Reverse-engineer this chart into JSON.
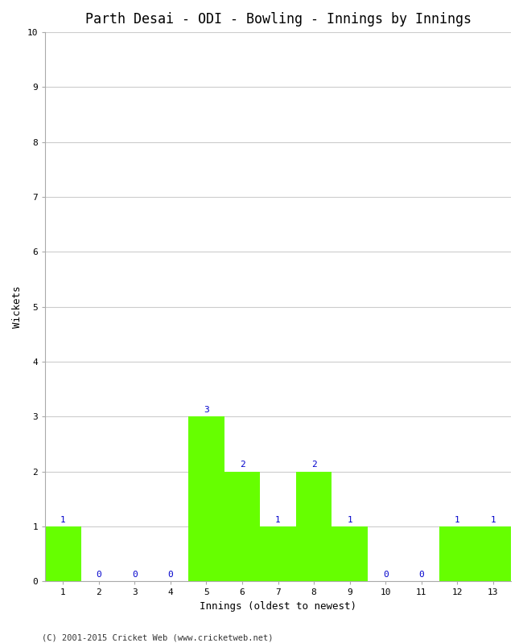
{
  "title": "Parth Desai - ODI - Bowling - Innings by Innings",
  "xlabel": "Innings (oldest to newest)",
  "ylabel": "Wickets",
  "categories": [
    "1",
    "2",
    "3",
    "4",
    "5",
    "6",
    "7",
    "8",
    "9",
    "10",
    "11",
    "12",
    "13"
  ],
  "values": [
    1,
    0,
    0,
    0,
    3,
    2,
    1,
    2,
    1,
    0,
    0,
    1,
    1
  ],
  "bar_color": "#66ff00",
  "bar_edge_color": "#66ff00",
  "label_color": "#0000cc",
  "background_color": "#ffffff",
  "grid_color": "#cccccc",
  "ylim": [
    0,
    10
  ],
  "yticks": [
    0,
    1,
    2,
    3,
    4,
    5,
    6,
    7,
    8,
    9,
    10
  ],
  "title_fontsize": 12,
  "axis_label_fontsize": 9,
  "tick_label_fontsize": 8,
  "bar_label_fontsize": 8,
  "footnote": "(C) 2001-2015 Cricket Web (www.cricketweb.net)",
  "footnote_fontsize": 7.5
}
